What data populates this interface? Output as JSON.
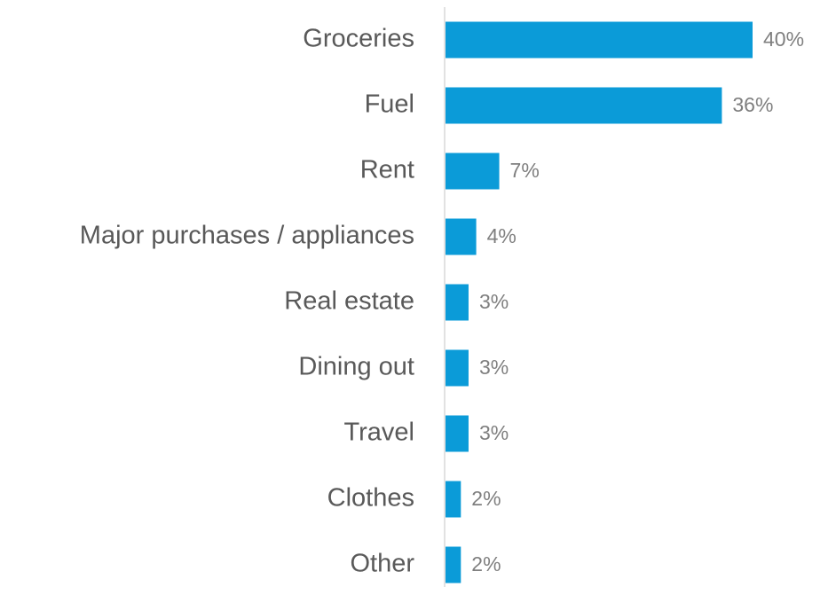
{
  "chart_data": {
    "type": "bar",
    "orientation": "horizontal",
    "categories": [
      "Groceries",
      "Fuel",
      "Rent",
      "Major purchases / appliances",
      "Real estate",
      "Dining out",
      "Travel",
      "Clothes",
      "Other"
    ],
    "values": [
      40,
      36,
      7,
      4,
      3,
      3,
      3,
      2,
      2
    ],
    "value_labels": [
      "40%",
      "36%",
      "7%",
      "4%",
      "3%",
      "3%",
      "3%",
      "2%",
      "2%"
    ],
    "color": "#0b9bd8"
  }
}
